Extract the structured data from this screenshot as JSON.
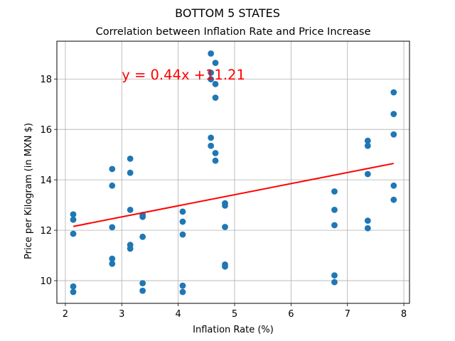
{
  "figure": {
    "suptitle": "BOTTOM 5 STATES"
  },
  "chart_data": {
    "type": "scatter",
    "title": "Correlation between Inflation Rate and Price Increase",
    "xlabel": "Inflation Rate (%)",
    "ylabel": "Price per Kilogram (in MXN $)",
    "xlim": [
      1.85,
      8.1
    ],
    "ylim": [
      9.1,
      19.5
    ],
    "xticks": [
      2,
      3,
      4,
      5,
      6,
      7,
      8
    ],
    "yticks": [
      10,
      12,
      14,
      16,
      18
    ],
    "grid": true,
    "marker_color": "#1f77b4",
    "line_color": "#ff0000",
    "points": [
      {
        "x": 2.14,
        "y": 12.63
      },
      {
        "x": 2.14,
        "y": 12.42
      },
      {
        "x": 2.14,
        "y": 11.86
      },
      {
        "x": 2.14,
        "y": 9.77
      },
      {
        "x": 2.14,
        "y": 9.55
      },
      {
        "x": 2.83,
        "y": 14.43
      },
      {
        "x": 2.83,
        "y": 13.77
      },
      {
        "x": 2.83,
        "y": 12.12
      },
      {
        "x": 2.83,
        "y": 10.87
      },
      {
        "x": 2.83,
        "y": 10.67
      },
      {
        "x": 3.15,
        "y": 14.84
      },
      {
        "x": 3.15,
        "y": 14.28
      },
      {
        "x": 3.15,
        "y": 12.81
      },
      {
        "x": 3.15,
        "y": 11.42
      },
      {
        "x": 3.15,
        "y": 11.27
      },
      {
        "x": 3.37,
        "y": 12.61
      },
      {
        "x": 3.37,
        "y": 12.53
      },
      {
        "x": 3.37,
        "y": 11.74
      },
      {
        "x": 3.37,
        "y": 9.9
      },
      {
        "x": 3.37,
        "y": 9.6
      },
      {
        "x": 4.08,
        "y": 12.74
      },
      {
        "x": 4.08,
        "y": 12.34
      },
      {
        "x": 4.08,
        "y": 11.83
      },
      {
        "x": 4.08,
        "y": 9.8
      },
      {
        "x": 4.08,
        "y": 9.55
      },
      {
        "x": 4.58,
        "y": 19.01
      },
      {
        "x": 4.58,
        "y": 18.25
      },
      {
        "x": 4.58,
        "y": 17.99
      },
      {
        "x": 4.58,
        "y": 15.67
      },
      {
        "x": 4.58,
        "y": 15.35
      },
      {
        "x": 4.66,
        "y": 18.64
      },
      {
        "x": 4.66,
        "y": 17.8
      },
      {
        "x": 4.66,
        "y": 17.26
      },
      {
        "x": 4.66,
        "y": 15.06
      },
      {
        "x": 4.66,
        "y": 14.76
      },
      {
        "x": 4.83,
        "y": 13.07
      },
      {
        "x": 4.83,
        "y": 12.98
      },
      {
        "x": 4.83,
        "y": 12.13
      },
      {
        "x": 4.83,
        "y": 10.64
      },
      {
        "x": 4.83,
        "y": 10.56
      },
      {
        "x": 6.77,
        "y": 13.54
      },
      {
        "x": 6.77,
        "y": 12.81
      },
      {
        "x": 6.77,
        "y": 12.2
      },
      {
        "x": 6.77,
        "y": 10.21
      },
      {
        "x": 6.77,
        "y": 9.94
      },
      {
        "x": 7.36,
        "y": 15.55
      },
      {
        "x": 7.36,
        "y": 15.35
      },
      {
        "x": 7.36,
        "y": 14.23
      },
      {
        "x": 7.36,
        "y": 12.38
      },
      {
        "x": 7.36,
        "y": 12.08
      },
      {
        "x": 7.82,
        "y": 17.47
      },
      {
        "x": 7.82,
        "y": 16.61
      },
      {
        "x": 7.82,
        "y": 15.8
      },
      {
        "x": 7.82,
        "y": 13.77
      },
      {
        "x": 7.82,
        "y": 13.21
      }
    ],
    "regression": {
      "slope": 0.44,
      "intercept": 11.21,
      "x_start": 2.14,
      "x_end": 7.82,
      "equation_label": "y = 0.44x +11.21",
      "label_position": [
        3.0,
        18.0
      ]
    }
  }
}
